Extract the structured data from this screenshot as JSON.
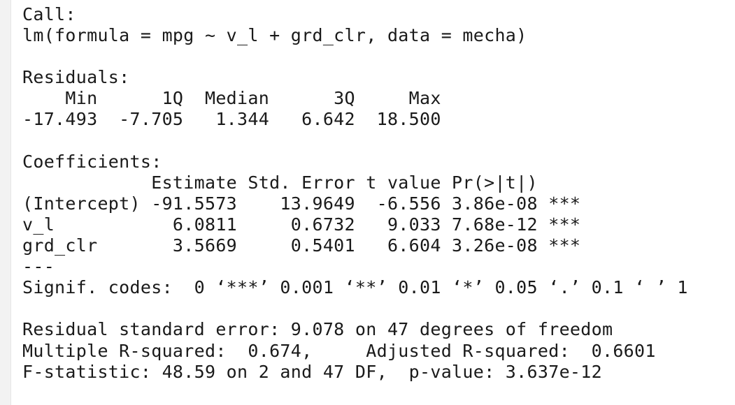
{
  "console": {
    "lines": [
      "Call:",
      "lm(formula = mpg ~ v_l + grd_clr, data = mecha)",
      "",
      "Residuals:",
      "    Min      1Q  Median      3Q     Max ",
      "-17.493  -7.705   1.344   6.642  18.500 ",
      "",
      "Coefficients:",
      "            Estimate Std. Error t value Pr(>|t|)    ",
      "(Intercept) -91.5573    13.9649  -6.556 3.86e-08 ***",
      "v_l           6.0811     0.6732   9.033 7.68e-12 ***",
      "grd_clr       3.5669     0.5401   6.604 3.26e-08 ***",
      "---",
      "Signif. codes:  0 ‘***’ 0.001 ‘**’ 0.01 ‘*’ 0.05 ‘.’ 0.1 ‘ ’ 1",
      "",
      "Residual standard error: 9.078 on 47 degrees of freedom",
      "Multiple R-squared:  0.674,\tAdjusted R-squared:  0.6601 ",
      "F-statistic: 48.59 on 2 and 47 DF,  p-value: 3.637e-12"
    ]
  }
}
